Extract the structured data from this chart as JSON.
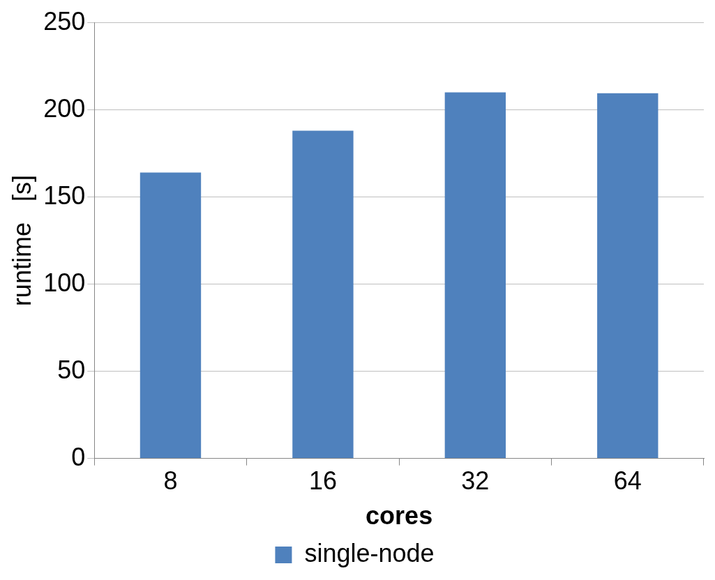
{
  "chart_data": {
    "type": "bar",
    "xlabel": "cores",
    "ylabel": "runtime   [s]",
    "categories": [
      "8",
      "16",
      "32",
      "64"
    ],
    "series": [
      {
        "name": "single-node",
        "color": "#4f81bd",
        "values": [
          164,
          188,
          210,
          209.5
        ]
      }
    ],
    "ylim": [
      0,
      250
    ],
    "yticks": [
      0,
      50,
      100,
      150,
      200,
      250
    ],
    "grid": "y",
    "legend": "bottom"
  }
}
